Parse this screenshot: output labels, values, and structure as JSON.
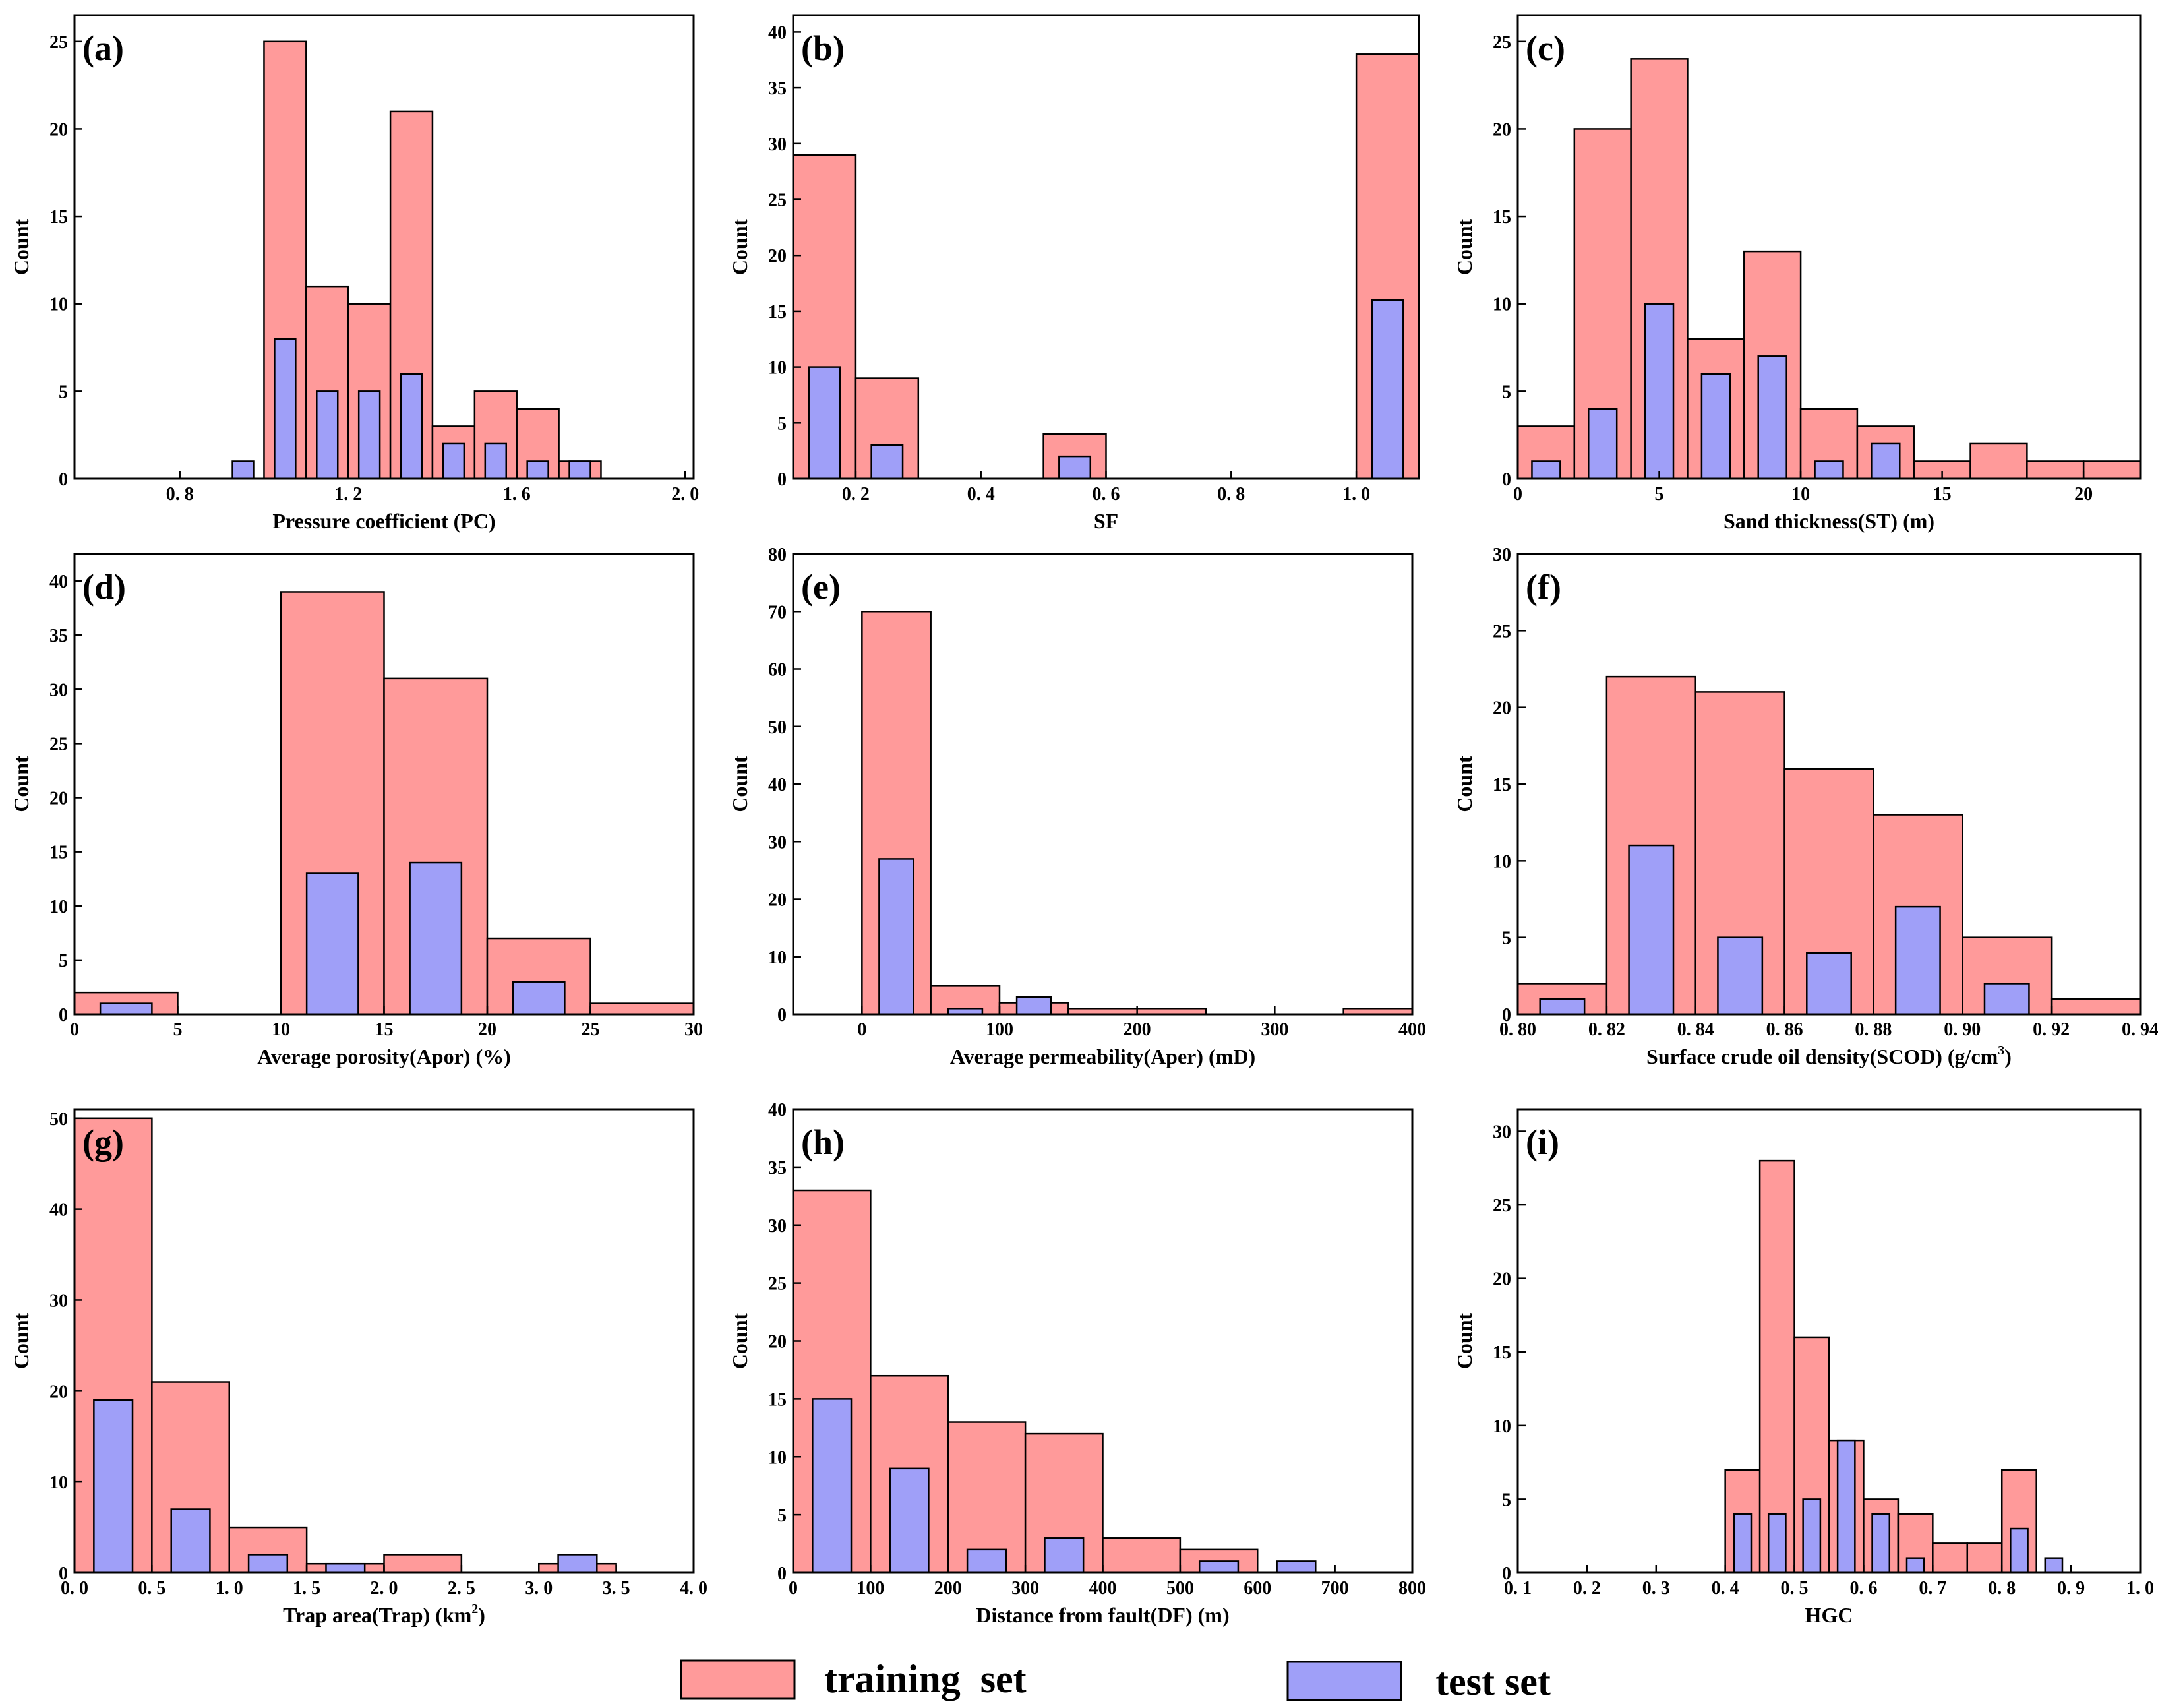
{
  "colors": {
    "train": "#ff9a9a",
    "test": "#9f9ff8",
    "stroke": "#000000"
  },
  "legend": {
    "train_label": "training  set",
    "test_label": "test set"
  },
  "chart_data": [
    {
      "panel": "(a)",
      "type": "bar",
      "xlabel": "Pressure  coefficient (PC)",
      "ylabel": "Count",
      "xlim": [
        0.55,
        2.02
      ],
      "ylim": [
        0,
        26.5
      ],
      "xticks": [
        0.8,
        1.2,
        1.6,
        2.0
      ],
      "xtick_labels": [
        "0. 8",
        "1. 2",
        "1. 6",
        "2. 0"
      ],
      "yticks": [
        0,
        5,
        10,
        15,
        20,
        25
      ],
      "train": [
        [
          1.0,
          1.1,
          25
        ],
        [
          1.1,
          1.2,
          11
        ],
        [
          1.2,
          1.3,
          10
        ],
        [
          1.3,
          1.4,
          21
        ],
        [
          1.4,
          1.5,
          3
        ],
        [
          1.5,
          1.6,
          5
        ],
        [
          1.6,
          1.7,
          4
        ],
        [
          1.7,
          1.8,
          1
        ]
      ],
      "test": [
        [
          0.925,
          0.975,
          1
        ],
        [
          1.025,
          1.075,
          8
        ],
        [
          1.125,
          1.175,
          5
        ],
        [
          1.225,
          1.275,
          5
        ],
        [
          1.325,
          1.375,
          6
        ],
        [
          1.425,
          1.475,
          2
        ],
        [
          1.525,
          1.575,
          2
        ],
        [
          1.625,
          1.675,
          1
        ],
        [
          1.725,
          1.775,
          1
        ]
      ]
    },
    {
      "panel": "(b)",
      "type": "bar",
      "xlabel": "SF",
      "ylabel": "Count",
      "xlim": [
        0.1,
        1.1
      ],
      "ylim": [
        0,
        41.5
      ],
      "xticks": [
        0.2,
        0.4,
        0.6,
        0.8,
        1.0
      ],
      "xtick_labels": [
        "0. 2",
        "0. 4",
        "0. 6",
        "0. 8",
        "1. 0"
      ],
      "yticks": [
        0,
        5,
        10,
        15,
        20,
        25,
        30,
        35,
        40
      ],
      "train": [
        [
          0.1,
          0.2,
          29
        ],
        [
          0.2,
          0.3,
          9
        ],
        [
          0.5,
          0.6,
          4
        ],
        [
          1.0,
          1.1,
          38
        ]
      ],
      "test": [
        [
          0.125,
          0.175,
          10
        ],
        [
          0.225,
          0.275,
          3
        ],
        [
          0.525,
          0.575,
          2
        ],
        [
          1.025,
          1.075,
          16
        ]
      ]
    },
    {
      "panel": "(c)",
      "type": "bar",
      "xlabel": "Sand thickness(ST) (m)",
      "ylabel": "Count",
      "xlim": [
        0,
        22
      ],
      "ylim": [
        0,
        26.5
      ],
      "xticks": [
        0,
        5,
        10,
        15,
        20
      ],
      "xtick_labels": [
        "0",
        "5",
        "10",
        "15",
        "20"
      ],
      "yticks": [
        0,
        5,
        10,
        15,
        20,
        25
      ],
      "train": [
        [
          0,
          2,
          3
        ],
        [
          2,
          4,
          20
        ],
        [
          4,
          6,
          24
        ],
        [
          6,
          8,
          8
        ],
        [
          8,
          10,
          13
        ],
        [
          10,
          12,
          4
        ],
        [
          12,
          14,
          3
        ],
        [
          14,
          16,
          1
        ],
        [
          16,
          18,
          2
        ],
        [
          18,
          20,
          1
        ],
        [
          20,
          22,
          1
        ]
      ],
      "test": [
        [
          0.5,
          1.5,
          1
        ],
        [
          2.5,
          3.5,
          4
        ],
        [
          4.5,
          5.5,
          10
        ],
        [
          6.5,
          7.5,
          6
        ],
        [
          8.5,
          9.5,
          7
        ],
        [
          10.5,
          11.5,
          1
        ],
        [
          12.5,
          13.5,
          2
        ]
      ]
    },
    {
      "panel": "(d)",
      "type": "bar",
      "xlabel": "Average porosity(Apor) (%)",
      "ylabel": "Count",
      "xlim": [
        0,
        30
      ],
      "ylim": [
        0,
        42.5
      ],
      "xticks": [
        0,
        5,
        10,
        15,
        20,
        25,
        30
      ],
      "xtick_labels": [
        "0",
        "5",
        "10",
        "15",
        "20",
        "25",
        "30"
      ],
      "yticks": [
        0,
        5,
        10,
        15,
        20,
        25,
        30,
        35,
        40
      ],
      "train": [
        [
          0,
          5,
          2
        ],
        [
          10,
          15,
          39
        ],
        [
          15,
          20,
          31
        ],
        [
          20,
          25,
          7
        ],
        [
          25,
          30,
          1
        ]
      ],
      "test": [
        [
          1.25,
          3.75,
          1
        ],
        [
          11.25,
          13.75,
          13
        ],
        [
          16.25,
          18.75,
          14
        ],
        [
          21.25,
          23.75,
          3
        ]
      ]
    },
    {
      "panel": "(e)",
      "type": "bar",
      "xlabel": "Average permeability(Aper) (mD)",
      "ylabel": "Count",
      "xlim": [
        -50,
        400
      ],
      "ylim": [
        0,
        80
      ],
      "xticks": [
        0,
        100,
        200,
        300,
        400
      ],
      "xtick_labels": [
        "0",
        "100",
        "200",
        "300",
        "400"
      ],
      "yticks": [
        0,
        10,
        20,
        30,
        40,
        50,
        60,
        70,
        80
      ],
      "train": [
        [
          0,
          50,
          70
        ],
        [
          50,
          100,
          5
        ],
        [
          100,
          150,
          2
        ],
        [
          150,
          250,
          1
        ],
        [
          350,
          400,
          1
        ]
      ],
      "test": [
        [
          12.5,
          37.5,
          27
        ],
        [
          62.5,
          87.5,
          1
        ],
        [
          112.5,
          137.5,
          3
        ]
      ]
    },
    {
      "panel": "(f)",
      "type": "bar",
      "xlabel": "Surface crude oil density(SCOD) (g/cm",
      "xlabel_sup": "3",
      "xlabel_end": ")",
      "ylabel": "Count",
      "xlim": [
        0.8,
        0.94
      ],
      "ylim": [
        0,
        30
      ],
      "xticks": [
        0.8,
        0.82,
        0.84,
        0.86,
        0.88,
        0.9,
        0.92,
        0.94
      ],
      "xtick_labels": [
        "0. 80",
        "0. 82",
        "0. 84",
        "0. 86",
        "0. 88",
        "0. 90",
        "0. 92",
        "0. 94"
      ],
      "yticks": [
        0,
        5,
        10,
        15,
        20,
        25,
        30
      ],
      "train": [
        [
          0.8,
          0.82,
          2
        ],
        [
          0.82,
          0.84,
          22
        ],
        [
          0.84,
          0.86,
          21
        ],
        [
          0.86,
          0.88,
          16
        ],
        [
          0.88,
          0.9,
          13
        ],
        [
          0.9,
          0.92,
          5
        ],
        [
          0.92,
          0.94,
          1
        ]
      ],
      "test": [
        [
          0.805,
          0.815,
          1
        ],
        [
          0.825,
          0.835,
          11
        ],
        [
          0.845,
          0.855,
          5
        ],
        [
          0.865,
          0.875,
          4
        ],
        [
          0.885,
          0.895,
          7
        ],
        [
          0.905,
          0.915,
          2
        ]
      ]
    },
    {
      "panel": "(g)",
      "type": "bar",
      "xlabel": "Trap area(Trap) (km",
      "xlabel_sup": "2",
      "xlabel_end": ")",
      "ylabel": "Count",
      "xlim": [
        0,
        4
      ],
      "ylim": [
        0,
        51
      ],
      "xticks": [
        0,
        0.5,
        1.0,
        1.5,
        2.0,
        2.5,
        3.0,
        3.5,
        4.0
      ],
      "xtick_labels": [
        "0. 0",
        "0. 5",
        "1. 0",
        "1. 5",
        "2. 0",
        "2. 5",
        "3. 0",
        "3. 5",
        "4. 0"
      ],
      "yticks": [
        0,
        10,
        20,
        30,
        40,
        50
      ],
      "train": [
        [
          0,
          0.5,
          50
        ],
        [
          0.5,
          1.0,
          21
        ],
        [
          1.0,
          1.5,
          5
        ],
        [
          1.5,
          2.0,
          1
        ],
        [
          2.0,
          2.5,
          2
        ],
        [
          3.0,
          3.5,
          1
        ]
      ],
      "test": [
        [
          0.125,
          0.375,
          19
        ],
        [
          0.625,
          0.875,
          7
        ],
        [
          1.125,
          1.375,
          2
        ],
        [
          1.625,
          1.875,
          1
        ],
        [
          3.125,
          3.375,
          2
        ]
      ]
    },
    {
      "panel": "(h)",
      "type": "bar",
      "xlabel": "Distance from fault(DF) (m)",
      "ylabel": "Count",
      "xlim": [
        0,
        800
      ],
      "ylim": [
        0,
        40
      ],
      "xticks": [
        0,
        100,
        200,
        300,
        400,
        500,
        600,
        700,
        800
      ],
      "xtick_labels": [
        "0",
        "100",
        "200",
        "300",
        "400",
        "500",
        "600",
        "700",
        "800"
      ],
      "yticks": [
        0,
        5,
        10,
        15,
        20,
        25,
        30,
        35,
        40
      ],
      "train": [
        [
          0,
          100,
          33
        ],
        [
          100,
          200,
          17
        ],
        [
          200,
          300,
          13
        ],
        [
          300,
          400,
          12
        ],
        [
          400,
          500,
          3
        ],
        [
          500,
          600,
          2
        ]
      ],
      "test": [
        [
          25,
          75,
          15
        ],
        [
          125,
          175,
          9
        ],
        [
          225,
          275,
          2
        ],
        [
          325,
          375,
          3
        ],
        [
          525,
          575,
          1
        ],
        [
          625,
          675,
          1
        ]
      ]
    },
    {
      "panel": "(i)",
      "type": "bar",
      "xlabel": "HGC",
      "ylabel": "Count",
      "xlim": [
        0.1,
        1.0
      ],
      "ylim": [
        0,
        31.5
      ],
      "xticks": [
        0.1,
        0.2,
        0.3,
        0.4,
        0.5,
        0.6,
        0.7,
        0.8,
        0.9,
        1.0
      ],
      "xtick_labels": [
        "0. 1",
        "0. 2",
        "0. 3",
        "0. 4",
        "0. 5",
        "0. 6",
        "0. 7",
        "0. 8",
        "0. 9",
        "1. 0"
      ],
      "yticks": [
        0,
        5,
        10,
        15,
        20,
        25,
        30
      ],
      "train": [
        [
          0.4,
          0.45,
          7
        ],
        [
          0.45,
          0.5,
          28
        ],
        [
          0.5,
          0.55,
          16
        ],
        [
          0.55,
          0.6,
          9
        ],
        [
          0.6,
          0.65,
          5
        ],
        [
          0.65,
          0.7,
          4
        ],
        [
          0.7,
          0.75,
          2
        ],
        [
          0.75,
          0.8,
          2
        ],
        [
          0.8,
          0.85,
          7
        ]
      ],
      "test": [
        [
          0.4125,
          0.4375,
          4
        ],
        [
          0.4625,
          0.4875,
          4
        ],
        [
          0.5125,
          0.5375,
          5
        ],
        [
          0.5625,
          0.5875,
          9
        ],
        [
          0.6125,
          0.6375,
          4
        ],
        [
          0.6625,
          0.6875,
          1
        ],
        [
          0.8125,
          0.8375,
          3
        ],
        [
          0.8625,
          0.8875,
          1
        ]
      ]
    }
  ]
}
